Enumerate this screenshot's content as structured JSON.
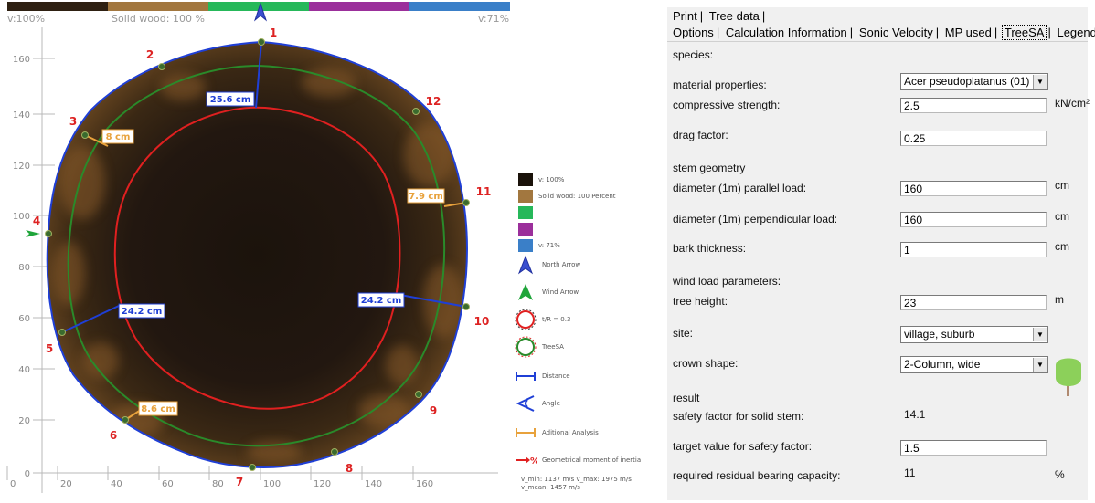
{
  "colors": {
    "dark": "#1a120a",
    "wood": "#a2773f",
    "green": "#26b85a",
    "purple": "#9b2f9b",
    "blue": "#3a7fc8",
    "outline_red": "#e02020",
    "outline_green": "#2a8a2a",
    "outline_blue": "#1f3fd6"
  },
  "top_bar": {
    "left": "v:100%",
    "center": "Solid wood: 100 %",
    "right": "v:71%"
  },
  "plot": {
    "y_ticks": [
      "160",
      "140",
      "120",
      "100",
      "80",
      "60",
      "40",
      "20",
      "0"
    ],
    "x_ticks": [
      "0",
      "20",
      "40",
      "60",
      "80",
      "100",
      "120",
      "140",
      "160"
    ],
    "points": [
      "1",
      "2",
      "3",
      "4",
      "5",
      "6",
      "7",
      "8",
      "9",
      "10",
      "11",
      "12"
    ],
    "measurements": [
      "25.6 cm",
      "8 cm",
      "7.9 cm",
      "24.2 cm",
      "24.2 cm",
      "8.6 cm"
    ]
  },
  "legend": [
    {
      "icon": "swatch-dark",
      "label": "v: 100%"
    },
    {
      "icon": "swatch-wood",
      "label": "Solid wood: 100 Percent"
    },
    {
      "icon": "swatch-green",
      "label": ""
    },
    {
      "icon": "swatch-purple",
      "label": ""
    },
    {
      "icon": "swatch-blue",
      "label": "v: 71%"
    },
    {
      "icon": "north-arrow-icon",
      "label": "North Arrow"
    },
    {
      "icon": "wind-arrow-icon",
      "label": "Wind Arrow"
    },
    {
      "icon": "tr-circle-icon",
      "label": "t/R = 0.3"
    },
    {
      "icon": "treesa-circle-icon",
      "label": "TreeSA"
    },
    {
      "icon": "distance-icon",
      "label": "Distance"
    },
    {
      "icon": "angle-icon",
      "label": "Angle"
    },
    {
      "icon": "additional-analysis-icon",
      "label": "Aditional Analysis"
    },
    {
      "icon": "moment-of-inertia-icon",
      "label": "Geometrical moment of inertia"
    }
  ],
  "velocity_stats": {
    "line1": "v_min: 1137 m/s  v_max: 1975 m/s",
    "line2": "v_mean: 1457 m/s"
  },
  "tabs_row1": [
    "Print",
    "Tree data"
  ],
  "tabs_row2": [
    "Options",
    "Calculation Information",
    "Sonic Velocity",
    "MP used",
    "TreeSA",
    "Legend"
  ],
  "active_tab": "TreeSA",
  "form": {
    "species_label": "species:",
    "species_value": "Acer pseudoplatanus (01)",
    "material_header": "material properties:",
    "compressive_label": "compressive strength:",
    "compressive_value": "2.5",
    "compressive_unit": "kN/cm²",
    "drag_label": "drag factor:",
    "drag_value": "0.25",
    "stem_header": "stem geometry",
    "diam_parallel_label": "diameter (1m) parallel load:",
    "diam_parallel_value": "160",
    "diam_perp_label": "diameter (1m) perpendicular load:",
    "diam_perp_value": "160",
    "bark_label": "bark thickness:",
    "bark_value": "1",
    "unit_cm": "cm",
    "wind_header": "wind load parameters:",
    "height_label": "tree height:",
    "height_value": "23",
    "unit_m": "m",
    "site_label": "site:",
    "site_value": "village, suburb",
    "crown_label": "crown shape:",
    "crown_value": "2-Column, wide",
    "result_header": "result",
    "safety_solid_label": "safety factor for solid stem:",
    "safety_solid_value": "14.1",
    "target_label": "target value for safety factor:",
    "target_value": "1.5",
    "residual_label": "required residual bearing capacity:",
    "residual_value": "11",
    "unit_pct": "%"
  }
}
